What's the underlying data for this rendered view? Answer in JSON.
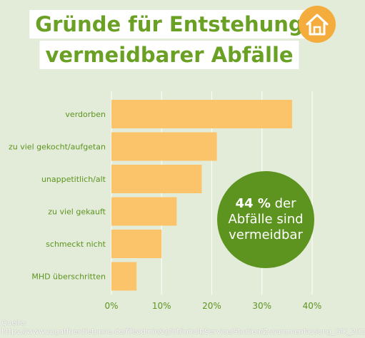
{
  "header": {
    "title_line1": "Gründe für Entstehung",
    "title_line2": "vermeidbarer Abfälle",
    "icon": "house-icon"
  },
  "callout": {
    "bold": "44 %",
    "line1_rest": " der",
    "line2": "Abfälle sind",
    "line3": "vermeidbar"
  },
  "source": {
    "label": "Quelle:",
    "url": "https://www.zugutfuerdietonne.de/fileadmin/zgfdt/inhalt/Service/Studien/Zusammenfassung_GfK_202"
  },
  "colors": {
    "bar": "#fbc46a",
    "title": "#6aa023",
    "callout": "#5d941f",
    "background": "#e3ebd9",
    "icon": "#f4ad3c"
  },
  "chart_data": {
    "type": "bar",
    "orientation": "horizontal",
    "categories": [
      "verdorben",
      "zu viel gekocht/aufgetan",
      "unappetitlich/alt",
      "zu viel gekauft",
      "schmeckt nicht",
      "MHD überschritten"
    ],
    "values": [
      36,
      21,
      18,
      13,
      10,
      5
    ],
    "xlim": [
      0,
      40
    ],
    "xticks": [
      "0%",
      "10%",
      "20%",
      "30%",
      "40%"
    ],
    "grid": true
  }
}
